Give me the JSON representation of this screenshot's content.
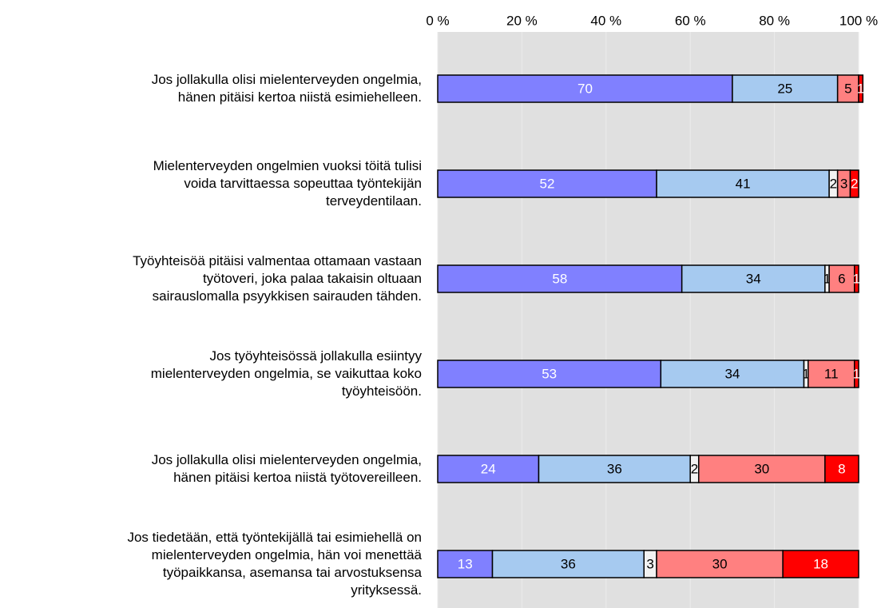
{
  "chart_data": {
    "type": "stacked-bar-horizontal",
    "categories": [
      "Jos jollakulla olisi mielenterveyden ongelmia,\nhänen pitäisi kertoa niistä esimiehelleen.",
      "Mielenterveyden ongelmien vuoksi töitä tulisi\nvoida tarvittaessa sopeuttaa työntekijän\nterveydentilaan.",
      "Työyhteisöä pitäisi valmentaa ottamaan vastaan\ntyötoveri, joka palaa takaisin oltuaan\nsairauslomalla psyykkisen sairauden tähden.",
      "Jos työyhteisössä jollakulla esiintyy\nmielenterveyden ongelmia, se vaikuttaa koko\ntyöyhteisöön.",
      "Jos jollakulla olisi mielenterveyden ongelmia,\nhänen pitäisi kertoa niistä työtovereilleen.",
      "Jos tiedetään, että työntekijällä tai esimiehellä on\nmielenterveyden ongelmia, hän voi menettää\ntyöpaikkansa, asemansa tai arvostuksensa\nyrityksessä."
    ],
    "series": [
      {
        "color": "#8080ff",
        "label_color": "#ffffff",
        "values": [
          70,
          52,
          58,
          53,
          24,
          13
        ]
      },
      {
        "color": "#a6caf0",
        "label_color": "#000000",
        "values": [
          25,
          41,
          34,
          34,
          36,
          36
        ]
      },
      {
        "color": "#f2f2f2",
        "label_color": "#000000",
        "values": [
          null,
          2,
          1,
          1,
          2,
          3
        ]
      },
      {
        "color": "#ff8080",
        "label_color": "#000000",
        "values": [
          5,
          3,
          6,
          11,
          30,
          30
        ]
      },
      {
        "color": "#ff0000",
        "label_color": "#ffffff",
        "values": [
          1,
          2,
          1,
          1,
          8,
          18
        ]
      }
    ],
    "xlim": [
      0,
      100
    ],
    "xticks": [
      {
        "value": 0,
        "label": "0 %"
      },
      {
        "value": 20,
        "label": "20 %"
      },
      {
        "value": 40,
        "label": "40 %"
      },
      {
        "value": 60,
        "label": "60 %"
      },
      {
        "value": 80,
        "label": "80 %"
      },
      {
        "value": 100,
        "label": "100 %"
      }
    ],
    "grid": true
  }
}
